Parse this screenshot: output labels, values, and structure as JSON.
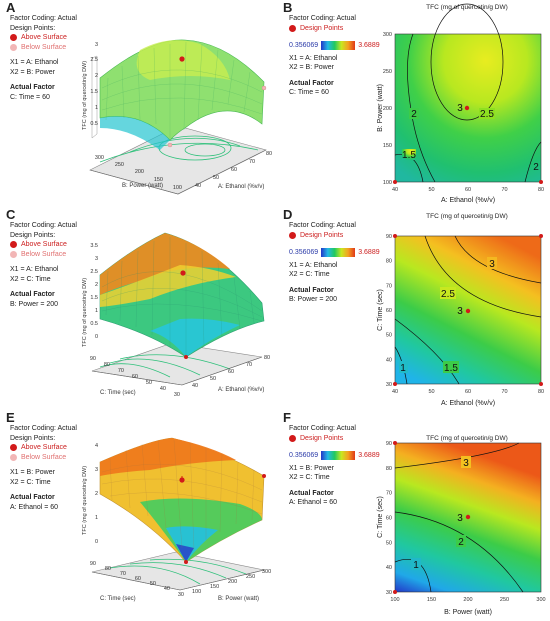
{
  "colors": {
    "scale": [
      "#2236c8",
      "#23b8e6",
      "#20c860",
      "#c8e820",
      "#f4a020",
      "#e03818"
    ],
    "design_point": "#d21a1a",
    "below_point": "#f2b6b6"
  },
  "panels": {
    "A": {
      "label": "A",
      "factor_coding": "Factor Coding: Actual",
      "design_points_title": "Design Points:",
      "above": "Above Surface",
      "below": "Below Surface",
      "x1": "X1 = A: Ethanol",
      "x2": "X2 = B: Power",
      "actual_factor_title": "Actual Factor",
      "actual_factor": "C: Time = 60"
    },
    "B": {
      "label": "B",
      "factor_coding": "Factor Coding: Actual",
      "design_points": "Design Points",
      "legend_low": "0.356069",
      "legend_high": "3.6889",
      "x1": "X1 = A: Ethanol",
      "x2": "X2 = B: Power",
      "actual_factor_title": "Actual Factor",
      "actual_factor": "C: Time = 60"
    },
    "C": {
      "label": "C",
      "factor_coding": "Factor Coding: Actual",
      "design_points_title": "Design Points:",
      "above": "Above Surface",
      "below": "Below Surface",
      "x1": "X1 = A: Ethanol",
      "x2": "X2 = C: Time",
      "actual_factor_title": "Actual Factor",
      "actual_factor": "B: Power = 200"
    },
    "D": {
      "label": "D",
      "factor_coding": "Factor Coding: Actual",
      "design_points": "Design Points",
      "legend_low": "0.356069",
      "legend_high": "3.6889",
      "x1": "X1 = A: Ethanol",
      "x2": "X2 = C: Time",
      "actual_factor_title": "Actual Factor",
      "actual_factor": "B: Power = 200"
    },
    "E": {
      "label": "E",
      "factor_coding": "Factor Coding: Actual",
      "design_points_title": "Design Points:",
      "above": "Above Surface",
      "below": "Below Surface",
      "x1": "X1 = B: Power",
      "x2": "X2 = C: Time",
      "actual_factor_title": "Actual Factor",
      "actual_factor": "A: Ethanol = 60"
    },
    "F": {
      "label": "F",
      "factor_coding": "Factor Coding: Actual",
      "design_points": "Design Points",
      "legend_low": "0.356069",
      "legend_high": "3.6889",
      "x1": "X1 = B: Power",
      "x2": "X2 = C: Time",
      "actual_factor_title": "Actual Factor",
      "actual_factor": "A: Ethanol = 60"
    }
  },
  "chart_data": [
    {
      "id": "A",
      "type": "surface3d",
      "zlabel": "TFC (mg of quercetin/g DW)",
      "xlabel": "A: Ethanol (%v/v)",
      "ylabel": "B: Power (watt)",
      "x_ticks": [
        "40",
        "50",
        "60",
        "70",
        "80"
      ],
      "y_ticks": [
        "100",
        "150",
        "200",
        "250",
        "300"
      ],
      "z_ticks": [
        "0.5",
        "1",
        "1.5",
        "2",
        "2.5",
        "3"
      ]
    },
    {
      "id": "B",
      "type": "contour",
      "title": "TFC (mg of quercetin/g DW)",
      "xlabel": "A: Ethanol (%v/v)",
      "ylabel": "B: Power (watt)",
      "x_ticks": [
        "40",
        "50",
        "60",
        "70",
        "80"
      ],
      "y_ticks": [
        "100",
        "150",
        "200",
        "250",
        "300"
      ],
      "contour_labels": [
        "1.5",
        "2",
        "2.5",
        "2"
      ],
      "point_label": "3"
    },
    {
      "id": "C",
      "type": "surface3d",
      "zlabel": "TFC (mg of quercetin/g DW)",
      "xlabel": "A: Ethanol (%v/v)",
      "ylabel": "C: Time (sec)",
      "x_ticks": [
        "40",
        "50",
        "60",
        "70",
        "80"
      ],
      "y_ticks": [
        "30",
        "40",
        "50",
        "60",
        "70",
        "80",
        "90"
      ],
      "z_ticks": [
        "0",
        "0.5",
        "1",
        "1.5",
        "2",
        "2.5",
        "3",
        "3.5"
      ]
    },
    {
      "id": "D",
      "type": "contour",
      "title": "TFC (mg of quercetin/g DW)",
      "xlabel": "A: Ethanol (%v/v)",
      "ylabel": "C: Time (sec)",
      "x_ticks": [
        "40",
        "50",
        "60",
        "70",
        "80"
      ],
      "y_ticks": [
        "30",
        "40",
        "50",
        "60",
        "70",
        "80",
        "90"
      ],
      "contour_labels": [
        "3",
        "2.5",
        "1",
        "1.5"
      ],
      "point_label": "3"
    },
    {
      "id": "E",
      "type": "surface3d",
      "zlabel": "TFC (mg of quercetin/g DW)",
      "xlabel": "B: Power (watt)",
      "ylabel": "C: Time (sec)",
      "x_ticks": [
        "100",
        "150",
        "200",
        "250",
        "300"
      ],
      "y_ticks": [
        "30",
        "40",
        "50",
        "60",
        "70",
        "80",
        "90"
      ],
      "z_ticks": [
        "0",
        "1",
        "2",
        "3",
        "4"
      ]
    },
    {
      "id": "F",
      "type": "contour",
      "title": "TFC (mg of quercetin/g DW)",
      "xlabel": "B: Power (watt)",
      "ylabel": "C: Time (sec)",
      "x_ticks": [
        "100",
        "150",
        "200",
        "250",
        "300"
      ],
      "y_ticks": [
        "30",
        "40",
        "50",
        "60",
        "70",
        "80",
        "90"
      ],
      "contour_labels": [
        "3",
        "2",
        "1"
      ],
      "point_label": "3"
    }
  ]
}
